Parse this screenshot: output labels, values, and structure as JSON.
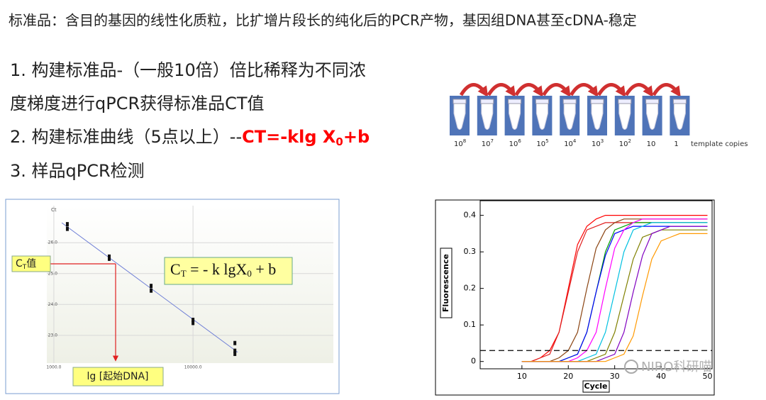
{
  "header": {
    "title": "标准品：含目的基因的线性化质粒，比扩增片段长的纯化后的PCR产物，基因组DNA甚至cDNA-稳定"
  },
  "steps": [
    "1. 构建标准品-（一般10倍）倍比稀释为不同浓",
    "度梯度进行qPCR获得标准品CT值",
    "2. 构建标准曲线（5点以上）--",
    "3. 样品qPCR检测"
  ],
  "formula": {
    "main": "CT=-klg X",
    "sub": "0",
    "tail": "+b"
  },
  "dilution": {
    "tubes": [
      {
        "base": "10",
        "exp": "8"
      },
      {
        "base": "10",
        "exp": "7"
      },
      {
        "base": "10",
        "exp": "6"
      },
      {
        "base": "10",
        "exp": "5"
      },
      {
        "base": "10",
        "exp": "4"
      },
      {
        "base": "10",
        "exp": "3"
      },
      {
        "base": "10",
        "exp": "2"
      },
      {
        "base": "10"
      },
      {
        "base": "1"
      }
    ],
    "unit": "template copies"
  },
  "watermark": "NIRO科研喵",
  "chart_data": [
    {
      "type": "scatter",
      "y_label": "Ct",
      "x_label": "lg [起始DNA]",
      "xscale": "log",
      "grid": true,
      "ct_label": {
        "main": "C",
        "sub": "T",
        "tail": "值"
      },
      "equation": {
        "a": "C",
        "sub1": "T",
        "b": " = - k lgX",
        "sub2": "0",
        "c": " + b"
      },
      "xlim": [
        890,
        102000
      ],
      "ylim": [
        22.1,
        27.2
      ],
      "xticks": [
        {
          "value": 1000,
          "label": "1000.0"
        },
        {
          "value": 10000,
          "label": "10000.0"
        }
      ],
      "yticks": [
        {
          "value": 23,
          "label": "23.0"
        },
        {
          "value": 24,
          "label": "24.0"
        },
        {
          "value": 25,
          "label": "25.0"
        },
        {
          "value": 26,
          "label": "26.0"
        }
      ],
      "color": "#111111",
      "fit_color": "#6f7fd6",
      "x": [
        1250,
        1250,
        2500,
        2500,
        5000,
        5000,
        10000,
        10000,
        20000,
        20000,
        20000
      ],
      "values": [
        26.6,
        26.45,
        25.55,
        25.48,
        24.6,
        24.45,
        23.5,
        23.4,
        22.75,
        22.5,
        22.4
      ]
    },
    {
      "type": "line",
      "x_label": "Cycle",
      "y_label": "Fluorescence",
      "threshold": 0.03,
      "xlim": [
        1,
        51
      ],
      "ylim": [
        -0.02,
        0.44
      ],
      "xticks": [
        10,
        20,
        30,
        40,
        50
      ],
      "yticks": [
        0,
        0.1,
        0.2,
        0.3,
        0.4
      ],
      "x": [
        10,
        12,
        14,
        16,
        18,
        20,
        22,
        24,
        26,
        28,
        30,
        32,
        34,
        36,
        38,
        40,
        42,
        44,
        46,
        48,
        50
      ],
      "series": [
        {
          "color": "#ff0000",
          "values": [
            0,
            0,
            0.01,
            0.03,
            0.08,
            0.2,
            0.32,
            0.37,
            0.39,
            0.4,
            0.4,
            0.4,
            0.4,
            0.4,
            0.4,
            0.4,
            0.4,
            0.4,
            0.4,
            0.4,
            0.4
          ]
        },
        {
          "color": "#e02020",
          "values": [
            0,
            0,
            0.01,
            0.02,
            0.08,
            0.19,
            0.3,
            0.36,
            0.37,
            0.38,
            0.38,
            0.38,
            0.38,
            0.38,
            0.38,
            0.38,
            0.38,
            0.38,
            0.38,
            0.38,
            0.38
          ]
        },
        {
          "color": "#8b4513",
          "values": [
            0,
            0,
            0,
            0,
            0.01,
            0.03,
            0.08,
            0.2,
            0.31,
            0.36,
            0.38,
            0.39,
            0.39,
            0.39,
            0.39,
            0.39,
            0.39,
            0.39,
            0.39,
            0.39,
            0.39
          ]
        },
        {
          "color": "#00a000",
          "values": [
            0,
            0,
            0,
            0,
            0,
            0.01,
            0.02,
            0.08,
            0.19,
            0.3,
            0.36,
            0.37,
            0.38,
            0.38,
            0.38,
            0.38,
            0.38,
            0.38,
            0.38,
            0.38,
            0.38
          ]
        },
        {
          "color": "#0000ff",
          "values": [
            0,
            0,
            0,
            0,
            0,
            0.01,
            0.02,
            0.08,
            0.19,
            0.29,
            0.35,
            0.36,
            0.37,
            0.37,
            0.37,
            0.37,
            0.37,
            0.37,
            0.37,
            0.37,
            0.37
          ]
        },
        {
          "color": "#ff00ff",
          "values": [
            0,
            0,
            0,
            0,
            0,
            0,
            0.01,
            0.03,
            0.08,
            0.2,
            0.31,
            0.36,
            0.38,
            0.39,
            0.39,
            0.39,
            0.39,
            0.39,
            0.39,
            0.39,
            0.39
          ]
        },
        {
          "color": "#00c0e0",
          "values": [
            0,
            0,
            0,
            0,
            0,
            0,
            0,
            0.01,
            0.02,
            0.08,
            0.19,
            0.3,
            0.36,
            0.37,
            0.38,
            0.38,
            0.38,
            0.38,
            0.38,
            0.38,
            0.38
          ]
        },
        {
          "color": "#808000",
          "values": [
            0,
            0,
            0,
            0,
            0,
            0,
            0,
            0,
            0.01,
            0.02,
            0.08,
            0.18,
            0.28,
            0.34,
            0.35,
            0.36,
            0.36,
            0.36,
            0.36,
            0.36,
            0.36
          ]
        },
        {
          "color": "#8000c0",
          "values": [
            0,
            0,
            0,
            0,
            0,
            0,
            0,
            0,
            0,
            0.01,
            0.02,
            0.08,
            0.19,
            0.29,
            0.35,
            0.36,
            0.37,
            0.37,
            0.37,
            0.37,
            0.37
          ]
        },
        {
          "color": "#ff9900",
          "values": [
            0,
            0,
            0,
            0,
            0,
            0,
            0,
            0,
            0,
            0,
            0.01,
            0.02,
            0.07,
            0.18,
            0.28,
            0.33,
            0.34,
            0.35,
            0.35,
            0.35,
            0.35
          ]
        }
      ]
    }
  ]
}
